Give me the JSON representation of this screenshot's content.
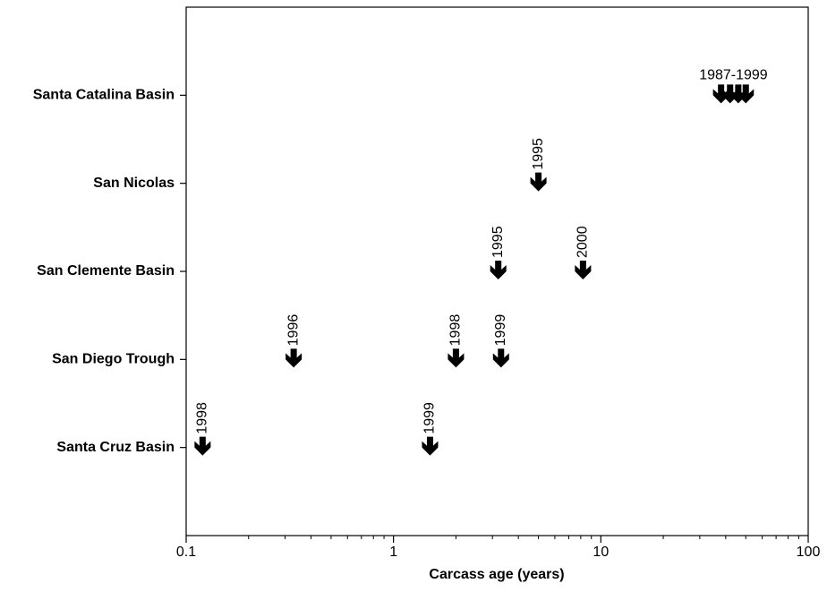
{
  "chart_data": {
    "type": "arrow-timeline",
    "x_label": "Carcass age (years)",
    "x_scale": "log",
    "xlim": [
      0.1,
      100
    ],
    "xticks": [
      0.1,
      1,
      10,
      100
    ],
    "xminorticks": [
      0.2,
      0.3,
      0.4,
      0.5,
      0.6,
      0.7,
      0.8,
      0.9,
      2,
      3,
      4,
      5,
      6,
      7,
      8,
      9,
      20,
      30,
      40,
      50,
      60,
      70,
      80,
      90
    ],
    "categories": [
      "Santa Catalina Basin",
      "San Nicolas",
      "San Clemente Basin",
      "San Diego Trough",
      "Santa Cruz Basin"
    ],
    "color": "#000000",
    "points": [
      {
        "category": 0,
        "x": [
          38,
          42,
          46,
          50
        ],
        "label": "1987-1999"
      },
      {
        "category": 1,
        "x": [
          5
        ],
        "label": "1995"
      },
      {
        "category": 2,
        "x": [
          3.2
        ],
        "label": "1995"
      },
      {
        "category": 2,
        "x": [
          8.2
        ],
        "label": "2000"
      },
      {
        "category": 3,
        "x": [
          0.33
        ],
        "label": "1996"
      },
      {
        "category": 3,
        "x": [
          2
        ],
        "label": "1998"
      },
      {
        "category": 3,
        "x": [
          3.3
        ],
        "label": "1999"
      },
      {
        "category": 4,
        "x": [
          0.12
        ],
        "label": "1998"
      },
      {
        "category": 4,
        "x": [
          1.5
        ],
        "label": "1999"
      }
    ]
  }
}
